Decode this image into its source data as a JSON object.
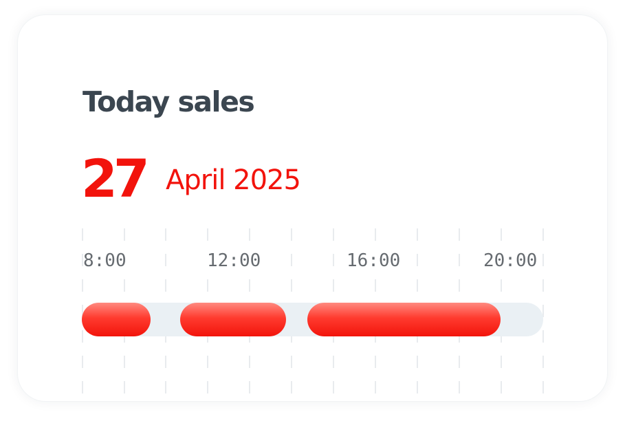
{
  "card": {
    "title": "Today sales",
    "date": {
      "day": "27",
      "month_year": "April 2025"
    }
  },
  "timeline": {
    "labels": [
      "8:00",
      "12:00",
      "16:00",
      "20:00"
    ],
    "colors": {
      "segment": "#f2130c",
      "track": "#eaf0f4",
      "grid": "#e8ebee"
    }
  }
}
